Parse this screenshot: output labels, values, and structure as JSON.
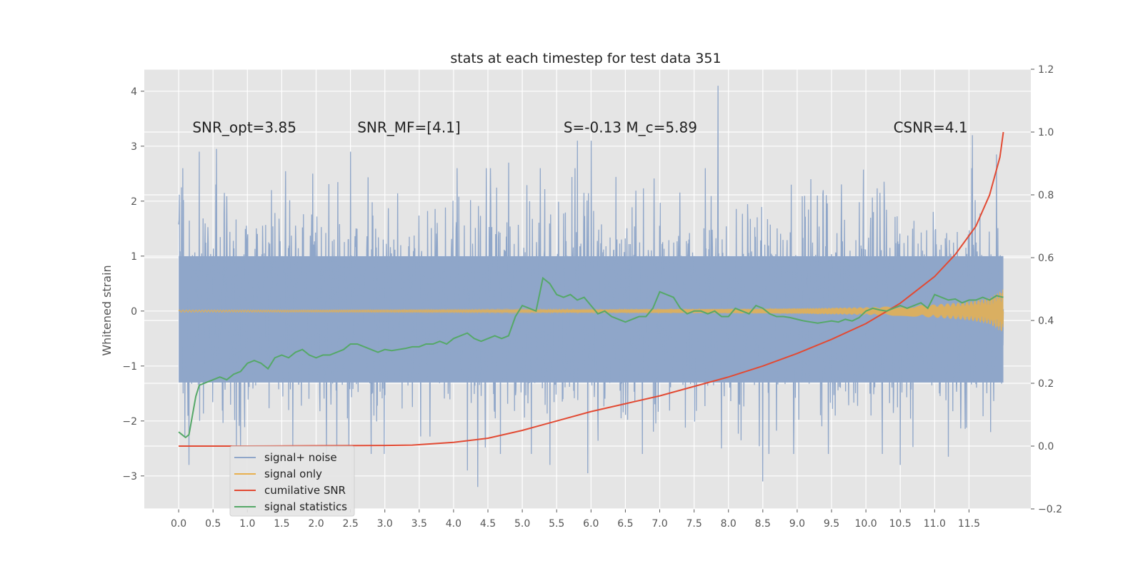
{
  "chart_data": {
    "type": "line",
    "title": "stats at each timestep for test data 351",
    "ylabel": "Whitened strain",
    "xlabel": "",
    "xlim": [
      -0.5,
      12.4
    ],
    "ylim": [
      -3.6,
      4.4
    ],
    "y2lim": [
      -0.2,
      1.2
    ],
    "grid": true,
    "legend_position": "lower-left",
    "x_ticks": [
      "0.0",
      "0.5",
      "1.0",
      "1.5",
      "2.0",
      "2.5",
      "3.0",
      "3.5",
      "4.0",
      "4.5",
      "5.0",
      "5.5",
      "6.0",
      "6.5",
      "7.0",
      "7.5",
      "8.0",
      "8.5",
      "9.0",
      "9.5",
      "10.0",
      "10.5",
      "11.0",
      "11.5"
    ],
    "y_ticks": [
      "4",
      "3",
      "2",
      "1",
      "0",
      "−1",
      "−2",
      "−3"
    ],
    "y2_ticks": [
      "1.2",
      "1.0",
      "0.8",
      "0.6",
      "0.4",
      "0.2",
      "0.0",
      "−0.2"
    ],
    "annotations": [
      {
        "text": "SNR_opt=3.85",
        "x": 0.2,
        "y": 3.25
      },
      {
        "text": "SNR_MF=[4.1]",
        "x": 2.6,
        "y": 3.25
      },
      {
        "text": "S=-0.13  M_c=5.89",
        "x": 5.6,
        "y": 3.25
      },
      {
        "text": "CSNR=4.1",
        "x": 10.4,
        "y": 3.25
      }
    ],
    "series": [
      {
        "name": "signal+ noise",
        "color": "#8fa6c9",
        "axis": "left",
        "x_start": 0.0,
        "x_end": 12.0,
        "band": [
          -1.3,
          1.0
        ],
        "peaks": [
          {
            "x": 0.04,
            "y": 2.25
          },
          {
            "x": 0.3,
            "y": 2.9
          },
          {
            "x": 0.55,
            "y": 2.95
          },
          {
            "x": 1.35,
            "y": 2.2
          },
          {
            "x": 1.95,
            "y": 2.5
          },
          {
            "x": 2.5,
            "y": 2.9
          },
          {
            "x": 4.05,
            "y": 2.6
          },
          {
            "x": 4.8,
            "y": 2.7
          },
          {
            "x": 5.8,
            "y": 3.1
          },
          {
            "x": 6.0,
            "y": 3.1
          },
          {
            "x": 7.85,
            "y": 4.1
          },
          {
            "x": 9.2,
            "y": 2.4
          },
          {
            "x": 11.55,
            "y": 3.2
          },
          {
            "x": 11.9,
            "y": 2.85
          }
        ],
        "troughs": [
          {
            "x": 0.15,
            "y": -2.8
          },
          {
            "x": 0.9,
            "y": -2.45
          },
          {
            "x": 2.3,
            "y": -2.55
          },
          {
            "x": 2.8,
            "y": -2.6
          },
          {
            "x": 4.2,
            "y": -2.9
          },
          {
            "x": 4.35,
            "y": -3.2
          },
          {
            "x": 5.4,
            "y": -2.8
          },
          {
            "x": 5.95,
            "y": -2.95
          },
          {
            "x": 7.9,
            "y": -2.5
          },
          {
            "x": 8.5,
            "y": -3.1
          },
          {
            "x": 10.5,
            "y": -2.8
          },
          {
            "x": 11.2,
            "y": -2.65
          }
        ]
      },
      {
        "name": "signal only",
        "color": "#e8b04f",
        "axis": "left",
        "x": [
          0,
          2,
          4,
          6,
          8,
          9,
          10,
          10.5,
          11,
          11.5,
          11.8,
          12.0
        ],
        "amplitude": [
          0.02,
          0.02,
          0.025,
          0.03,
          0.04,
          0.05,
          0.07,
          0.09,
          0.12,
          0.17,
          0.24,
          0.4
        ]
      },
      {
        "name": "cumilative SNR",
        "color": "#e24a33",
        "axis": "right",
        "x": [
          0,
          1,
          2,
          3,
          3.4,
          4,
          4.5,
          5,
          5.5,
          6,
          6.5,
          7,
          7.5,
          8,
          8.5,
          9,
          9.5,
          10,
          10.5,
          11,
          11.3,
          11.6,
          11.8,
          11.95,
          12.0
        ],
        "values": [
          0.0,
          0.0,
          0.001,
          0.002,
          0.003,
          0.012,
          0.025,
          0.05,
          0.08,
          0.11,
          0.135,
          0.16,
          0.19,
          0.22,
          0.255,
          0.295,
          0.34,
          0.39,
          0.455,
          0.54,
          0.61,
          0.7,
          0.8,
          0.92,
          1.0
        ]
      },
      {
        "name": "signal statistics",
        "color": "#55a868",
        "axis": "left",
        "x": [
          0.0,
          0.05,
          0.1,
          0.15,
          0.2,
          0.25,
          0.3,
          0.4,
          0.5,
          0.6,
          0.7,
          0.8,
          0.9,
          1.0,
          1.1,
          1.2,
          1.3,
          1.4,
          1.5,
          1.6,
          1.7,
          1.8,
          1.9,
          2.0,
          2.1,
          2.2,
          2.3,
          2.4,
          2.5,
          2.6,
          2.7,
          2.8,
          2.9,
          3.0,
          3.1,
          3.2,
          3.3,
          3.4,
          3.5,
          3.6,
          3.7,
          3.8,
          3.9,
          4.0,
          4.1,
          4.2,
          4.3,
          4.4,
          4.5,
          4.6,
          4.7,
          4.8,
          4.9,
          5.0,
          5.1,
          5.2,
          5.3,
          5.4,
          5.5,
          5.6,
          5.7,
          5.8,
          5.9,
          6.0,
          6.1,
          6.2,
          6.3,
          6.4,
          6.5,
          6.6,
          6.7,
          6.8,
          6.9,
          7.0,
          7.1,
          7.2,
          7.3,
          7.4,
          7.5,
          7.6,
          7.7,
          7.8,
          7.9,
          8.0,
          8.1,
          8.2,
          8.3,
          8.4,
          8.5,
          8.6,
          8.7,
          8.8,
          8.9,
          9.0,
          9.1,
          9.2,
          9.3,
          9.4,
          9.5,
          9.6,
          9.7,
          9.8,
          9.9,
          10.0,
          10.1,
          10.2,
          10.3,
          10.4,
          10.5,
          10.6,
          10.7,
          10.8,
          10.9,
          11.0,
          11.1,
          11.2,
          11.3,
          11.4,
          11.5,
          11.6,
          11.7,
          11.8,
          11.9,
          12.0
        ],
        "values": [
          -2.2,
          -2.25,
          -2.3,
          -2.25,
          -1.9,
          -1.55,
          -1.35,
          -1.3,
          -1.25,
          -1.2,
          -1.25,
          -1.15,
          -1.1,
          -0.95,
          -0.9,
          -0.95,
          -1.05,
          -0.85,
          -0.8,
          -0.85,
          -0.75,
          -0.7,
          -0.8,
          -0.85,
          -0.8,
          -0.8,
          -0.75,
          -0.7,
          -0.6,
          -0.6,
          -0.65,
          -0.7,
          -0.75,
          -0.7,
          -0.72,
          -0.7,
          -0.68,
          -0.65,
          -0.65,
          -0.6,
          -0.6,
          -0.55,
          -0.6,
          -0.5,
          -0.45,
          -0.4,
          -0.5,
          -0.55,
          -0.5,
          -0.45,
          -0.5,
          -0.45,
          -0.1,
          0.1,
          0.05,
          0.0,
          0.6,
          0.5,
          0.3,
          0.25,
          0.3,
          0.2,
          0.25,
          0.1,
          -0.05,
          0.0,
          -0.1,
          -0.15,
          -0.2,
          -0.15,
          -0.1,
          -0.1,
          0.05,
          0.35,
          0.3,
          0.25,
          0.05,
          -0.05,
          0.0,
          0.0,
          -0.05,
          0.0,
          -0.1,
          -0.1,
          0.05,
          0.0,
          -0.05,
          0.1,
          0.05,
          -0.05,
          -0.1,
          -0.1,
          -0.12,
          -0.15,
          -0.18,
          -0.2,
          -0.22,
          -0.2,
          -0.18,
          -0.2,
          -0.15,
          -0.18,
          -0.12,
          0.0,
          0.05,
          0.02,
          0.0,
          0.05,
          0.1,
          0.05,
          0.1,
          0.15,
          0.05,
          0.3,
          0.25,
          0.2,
          0.22,
          0.15,
          0.2,
          0.2,
          0.25,
          0.2,
          0.28,
          0.25
        ]
      }
    ]
  }
}
